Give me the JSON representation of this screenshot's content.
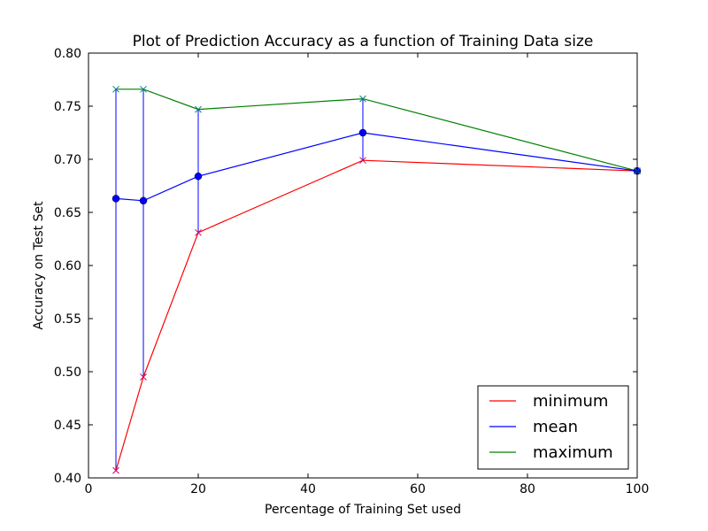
{
  "chart_data": {
    "type": "line",
    "title": "Plot of Prediction Accuracy as a function of Training Data size",
    "xlabel": "Percentage of Training Set used",
    "ylabel": "Accuracy on Test Set",
    "xlim": [
      0,
      100
    ],
    "ylim": [
      0.4,
      0.8
    ],
    "xticks": [
      0,
      20,
      40,
      60,
      80,
      100
    ],
    "xtick_labels": [
      "0",
      "20",
      "40",
      "60",
      "80",
      "100"
    ],
    "yticks": [
      0.4,
      0.45,
      0.5,
      0.55,
      0.6,
      0.65,
      0.7,
      0.75,
      0.8
    ],
    "ytick_labels": [
      "0.40",
      "0.45",
      "0.50",
      "0.55",
      "0.60",
      "0.65",
      "0.70",
      "0.75",
      "0.80"
    ],
    "grid": false,
    "legend_position": "bottom-right",
    "x": [
      5,
      10,
      20,
      50,
      100
    ],
    "series": [
      {
        "name": "minimum",
        "color": "#ff0000",
        "marker": "x",
        "values": [
          0.407,
          0.495,
          0.631,
          0.699,
          0.689
        ]
      },
      {
        "name": "mean",
        "color": "#0000ff",
        "marker": "circle",
        "values": [
          0.663,
          0.661,
          0.684,
          0.725,
          0.689
        ]
      },
      {
        "name": "maximum",
        "color": "#008000",
        "marker": "x",
        "values": [
          0.766,
          0.766,
          0.747,
          0.757,
          0.689
        ]
      }
    ],
    "error_bars": {
      "series": "mean",
      "color": "#0000ff",
      "lower": [
        0.407,
        0.495,
        0.631,
        0.699,
        0.689
      ],
      "upper": [
        0.766,
        0.766,
        0.747,
        0.757,
        0.689
      ]
    }
  }
}
